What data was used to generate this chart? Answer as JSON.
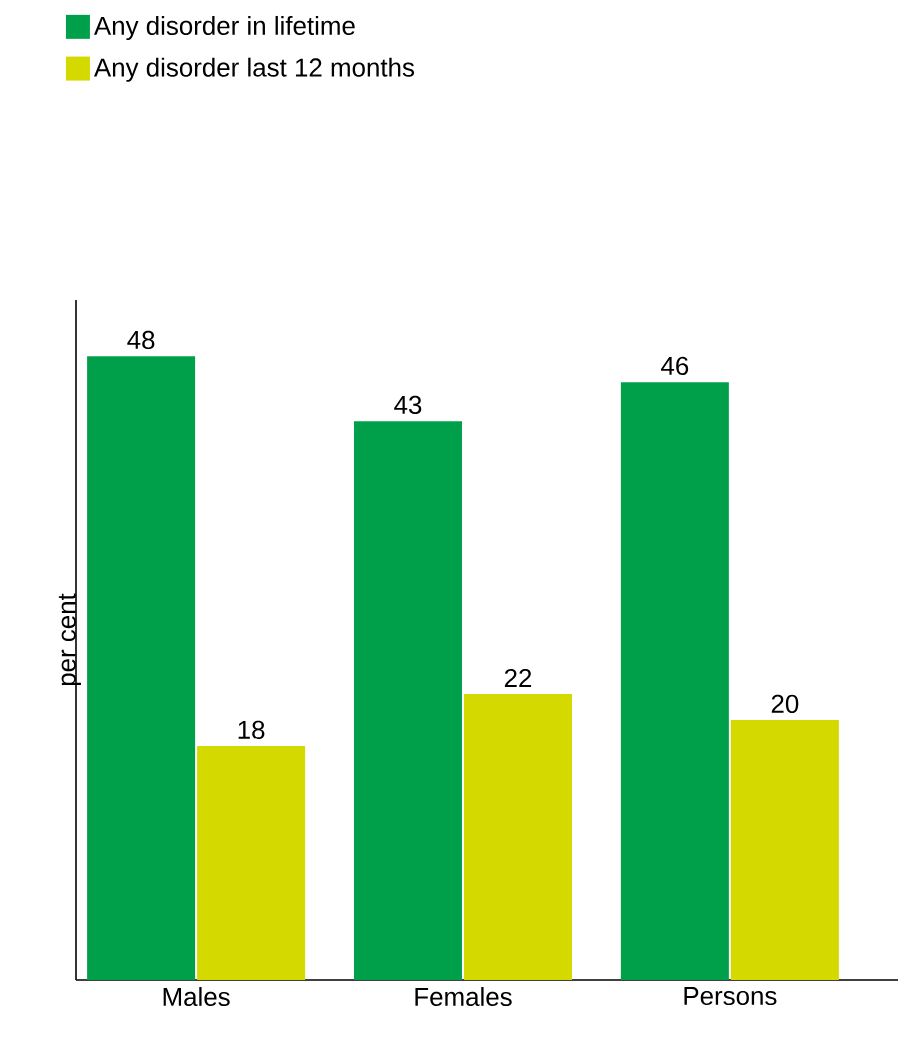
{
  "chart_data": {
    "type": "bar",
    "ylabel": "per cent",
    "categories": [
      "Males",
      "Females",
      "Persons"
    ],
    "series": [
      {
        "name": "Any disorder in lifetime",
        "color": "#00a04a",
        "values": [
          48,
          43,
          46
        ]
      },
      {
        "name": "Any disorder last 12 months",
        "color": "#d4d900",
        "values": [
          18,
          22,
          20
        ]
      }
    ],
    "data_labels": true,
    "tick_labels": "x",
    "legend": "top left"
  }
}
